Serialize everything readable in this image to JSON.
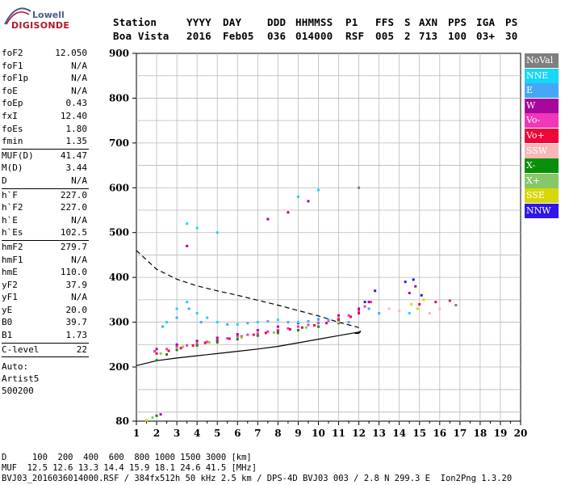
{
  "logo": {
    "top": "Lowell",
    "bottom": "DIGISONDE"
  },
  "header": {
    "labels": [
      "Station",
      "YYYY",
      "DAY",
      "DDD",
      "HHMMSS",
      "P1",
      "FFS",
      "S",
      "AXN",
      "PPS",
      "IGA",
      "PS"
    ],
    "values": [
      "Boa Vista",
      "2016",
      "Feb05",
      "036",
      "014000",
      "RSF",
      "005",
      "2",
      "713",
      "100",
      "03+",
      "30"
    ]
  },
  "params": {
    "group1": [
      {
        "name": "foF2",
        "value": "12.050"
      },
      {
        "name": "foF1",
        "value": "N/A"
      },
      {
        "name": "foF1p",
        "value": "N/A"
      },
      {
        "name": "foE",
        "value": "N/A"
      },
      {
        "name": "foEp",
        "value": "0.43"
      },
      {
        "name": "fxI",
        "value": "12.40"
      },
      {
        "name": "foEs",
        "value": "1.80"
      },
      {
        "name": "fmin",
        "value": "1.35"
      }
    ],
    "group2": [
      {
        "name": "MUF(D)",
        "value": "41.47"
      },
      {
        "name": "M(D)",
        "value": "3.44"
      },
      {
        "name": "D",
        "value": "N/A"
      }
    ],
    "group3": [
      {
        "name": "h`F",
        "value": "227.0"
      },
      {
        "name": "h`F2",
        "value": "227.0"
      },
      {
        "name": "h`E",
        "value": "N/A"
      },
      {
        "name": "h`Es",
        "value": "102.5"
      }
    ],
    "group4": [
      {
        "name": "hmF2",
        "value": "279.7"
      },
      {
        "name": "hmF1",
        "value": "N/A"
      },
      {
        "name": "hmE",
        "value": "110.0"
      },
      {
        "name": "yF2",
        "value": "37.9"
      },
      {
        "name": "yF1",
        "value": "N/A"
      },
      {
        "name": "yE",
        "value": "20.0"
      },
      {
        "name": "B0",
        "value": "39.7"
      },
      {
        "name": "B1",
        "value": "1.73"
      }
    ],
    "group5": [
      {
        "name": "C-level",
        "value": "22"
      }
    ],
    "auto": [
      "Auto:",
      "Artist5",
      "500200"
    ]
  },
  "footer": {
    "d_row": "D     100  200  400  600  800 1000 1500 3000 [km]",
    "muf_row": "MUF  12.5 12.6 13.3 14.4 15.9 18.1 24.6 41.5 [MHz]",
    "info_row": "BVJ03_2016036014000.RSF / 384fx512h 50 kHz 2.5 km / DPS-4D BVJ03 003 / 2.8 N 299.3 E  Ion2Png 1.3.20"
  },
  "legend": [
    {
      "label": "NoVal",
      "color": "#7f7f7f"
    },
    {
      "label": "NNE",
      "color": "#17d7f7"
    },
    {
      "label": "E",
      "color": "#47a7f7"
    },
    {
      "label": "W",
      "color": "#a7079f"
    },
    {
      "label": "Vo-",
      "color": "#ef37b7"
    },
    {
      "label": "Vo+",
      "color": "#ef0737"
    },
    {
      "label": "SSW",
      "color": "#f7b7b7"
    },
    {
      "label": "X-",
      "color": "#078f07"
    },
    {
      "label": "X+",
      "color": "#87c767"
    },
    {
      "label": "SSE",
      "color": "#d7d707"
    },
    {
      "label": "NNW",
      "color": "#2f17e7"
    }
  ],
  "chart_data": {
    "type": "scatter",
    "xlim": [
      1,
      20
    ],
    "ylim": [
      80,
      900
    ],
    "x_ticks": [
      1,
      2,
      3,
      4,
      5,
      6,
      7,
      8,
      9,
      10,
      11,
      12,
      13,
      14,
      15,
      16,
      17,
      18,
      19,
      20
    ],
    "y_ticks": [
      80,
      200,
      300,
      400,
      500,
      600,
      700,
      800,
      900
    ],
    "grid": true,
    "series": [
      {
        "name": "Vo-",
        "color": "#ef37b7",
        "points": [
          [
            1.9,
            235
          ],
          [
            2.5,
            240
          ],
          [
            3.0,
            245
          ],
          [
            3.5,
            248
          ],
          [
            4.0,
            252
          ],
          [
            4.5,
            256
          ],
          [
            5.0,
            260
          ],
          [
            5.5,
            264
          ],
          [
            6.0,
            268
          ],
          [
            6.5,
            272
          ],
          [
            7.0,
            275
          ],
          [
            7.5,
            279
          ],
          [
            8.0,
            282
          ],
          [
            8.5,
            286
          ],
          [
            9.0,
            290
          ],
          [
            9.5,
            294
          ],
          [
            10.0,
            298
          ],
          [
            10.5,
            303
          ],
          [
            11.0,
            308
          ],
          [
            11.5,
            315
          ],
          [
            12.0,
            325
          ],
          [
            12.3,
            335
          ],
          [
            12.6,
            345
          ]
        ]
      },
      {
        "name": "Vo+",
        "color": "#ef0737",
        "points": [
          [
            2.0,
            230
          ],
          [
            2.6,
            236
          ],
          [
            3.2,
            242
          ],
          [
            3.8,
            248
          ],
          [
            4.4,
            254
          ],
          [
            5.0,
            258
          ],
          [
            5.6,
            263
          ],
          [
            6.2,
            268
          ],
          [
            6.8,
            272
          ],
          [
            7.4,
            276
          ],
          [
            8.0,
            280
          ],
          [
            8.6,
            284
          ],
          [
            9.2,
            288
          ],
          [
            9.8,
            293
          ],
          [
            10.4,
            298
          ],
          [
            11.0,
            305
          ],
          [
            11.6,
            312
          ],
          [
            12.0,
            320
          ],
          [
            15.0,
            340
          ],
          [
            15.8,
            345
          ],
          [
            16.5,
            348
          ]
        ]
      },
      {
        "name": "W",
        "color": "#a7079f",
        "points": [
          [
            2.0,
            240
          ],
          [
            3.0,
            250
          ],
          [
            4.0,
            258
          ],
          [
            5.0,
            265
          ],
          [
            6.0,
            273
          ],
          [
            7.0,
            282
          ],
          [
            8.0,
            290
          ],
          [
            9.0,
            298
          ],
          [
            10.0,
            306
          ],
          [
            11.0,
            315
          ],
          [
            12.0,
            330
          ],
          [
            12.5,
            345
          ],
          [
            9.5,
            570
          ],
          [
            8.5,
            545
          ],
          [
            7.5,
            530
          ],
          [
            3.5,
            470
          ],
          [
            2.2,
            95
          ],
          [
            14.5,
            365
          ],
          [
            14.8,
            380
          ]
        ]
      },
      {
        "name": "NNE",
        "color": "#17d7f7",
        "points": [
          [
            2.5,
            300
          ],
          [
            3.0,
            330
          ],
          [
            3.5,
            345
          ],
          [
            4.0,
            320
          ],
          [
            4.5,
            310
          ],
          [
            5.0,
            300
          ],
          [
            6.0,
            295
          ],
          [
            7.0,
            300
          ],
          [
            8.0,
            305
          ],
          [
            9.0,
            300
          ],
          [
            10.0,
            305
          ],
          [
            11.0,
            300
          ],
          [
            3.5,
            520
          ],
          [
            4.0,
            510
          ],
          [
            5.0,
            500
          ],
          [
            9.0,
            580
          ],
          [
            10.0,
            595
          ],
          [
            14.5,
            320
          ]
        ]
      },
      {
        "name": "E",
        "color": "#47a7f7",
        "points": [
          [
            2.3,
            290
          ],
          [
            3.0,
            310
          ],
          [
            3.6,
            330
          ],
          [
            4.2,
            300
          ],
          [
            5.5,
            295
          ],
          [
            6.5,
            298
          ],
          [
            7.5,
            302
          ],
          [
            8.5,
            300
          ],
          [
            9.5,
            302
          ],
          [
            10.5,
            305
          ],
          [
            11.5,
            300
          ],
          [
            12.5,
            330
          ],
          [
            13.0,
            320
          ]
        ]
      },
      {
        "name": "X-",
        "color": "#078f07",
        "points": [
          [
            2.0,
            215
          ],
          [
            2.5,
            228
          ],
          [
            3.0,
            238
          ],
          [
            4.0,
            248
          ],
          [
            5.0,
            255
          ],
          [
            6.0,
            262
          ],
          [
            7.0,
            270
          ],
          [
            8.0,
            276
          ],
          [
            9.0,
            282
          ],
          [
            10.0,
            290
          ],
          [
            11.0,
            298
          ],
          [
            2.0,
            92
          ]
        ]
      },
      {
        "name": "X+",
        "color": "#87c767",
        "points": [
          [
            2.2,
            230
          ],
          [
            3.3,
            245
          ],
          [
            4.6,
            255
          ],
          [
            6.2,
            266
          ],
          [
            7.8,
            277
          ],
          [
            9.4,
            288
          ],
          [
            11.0,
            300
          ],
          [
            1.8,
            88
          ]
        ]
      },
      {
        "name": "SSE",
        "color": "#d7d707",
        "points": [
          [
            14.6,
            340
          ],
          [
            14.9,
            330
          ],
          [
            15.2,
            350
          ],
          [
            1.5,
            82
          ]
        ]
      },
      {
        "name": "NNW",
        "color": "#2f17e7",
        "points": [
          [
            12.3,
            345
          ],
          [
            12.8,
            370
          ],
          [
            14.3,
            390
          ],
          [
            14.7,
            395
          ],
          [
            15.1,
            360
          ]
        ]
      },
      {
        "name": "SSW",
        "color": "#f7b7b7",
        "points": [
          [
            13.5,
            330
          ],
          [
            14.0,
            325
          ],
          [
            15.5,
            320
          ],
          [
            16.0,
            330
          ]
        ]
      },
      {
        "name": "NoVal",
        "color": "#7f7f7f",
        "points": [
          [
            16.8,
            338
          ],
          [
            12.0,
            600
          ]
        ]
      }
    ],
    "curves": [
      {
        "name": "profile-solid",
        "style": "solid",
        "points": [
          [
            1,
            203
          ],
          [
            2,
            214
          ],
          [
            3,
            220
          ],
          [
            4,
            225
          ],
          [
            5,
            230
          ],
          [
            6,
            235
          ],
          [
            7,
            240
          ],
          [
            8,
            246
          ],
          [
            9,
            254
          ],
          [
            10,
            262
          ],
          [
            11,
            270
          ],
          [
            12,
            278
          ],
          [
            12.1,
            280
          ],
          [
            12.0,
            275
          ],
          [
            11.8,
            275
          ]
        ]
      },
      {
        "name": "profile-dashed",
        "style": "dashed",
        "points": [
          [
            1,
            460
          ],
          [
            2,
            418
          ],
          [
            3,
            396
          ],
          [
            4,
            381
          ],
          [
            5,
            370
          ],
          [
            6,
            360
          ],
          [
            7,
            349
          ],
          [
            8,
            338
          ],
          [
            9,
            326
          ],
          [
            10,
            314
          ],
          [
            11,
            300
          ],
          [
            12,
            288
          ]
        ]
      }
    ]
  }
}
